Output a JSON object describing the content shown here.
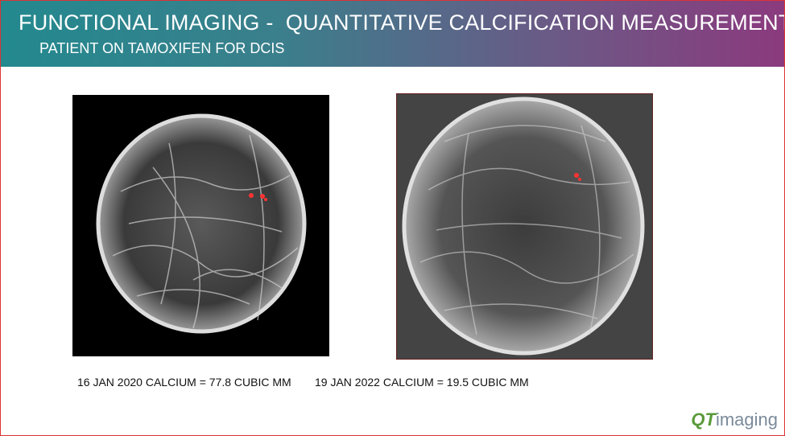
{
  "header": {
    "title": "FUNCTIONAL IMAGING -  QUANTITATIVE CALCIFICATION MEASUREMENT",
    "subtitle": "PATIENT ON TAMOXIFEN FOR DCIS"
  },
  "images": [
    {
      "caption": "16 JAN 2020 CALCIUM = 77.8 CUBIC MM"
    },
    {
      "caption": "19 JAN 2022 CALCIUM = 19.5 CUBIC MM"
    }
  ],
  "logo": {
    "mark": "QT",
    "name": "imaging"
  }
}
